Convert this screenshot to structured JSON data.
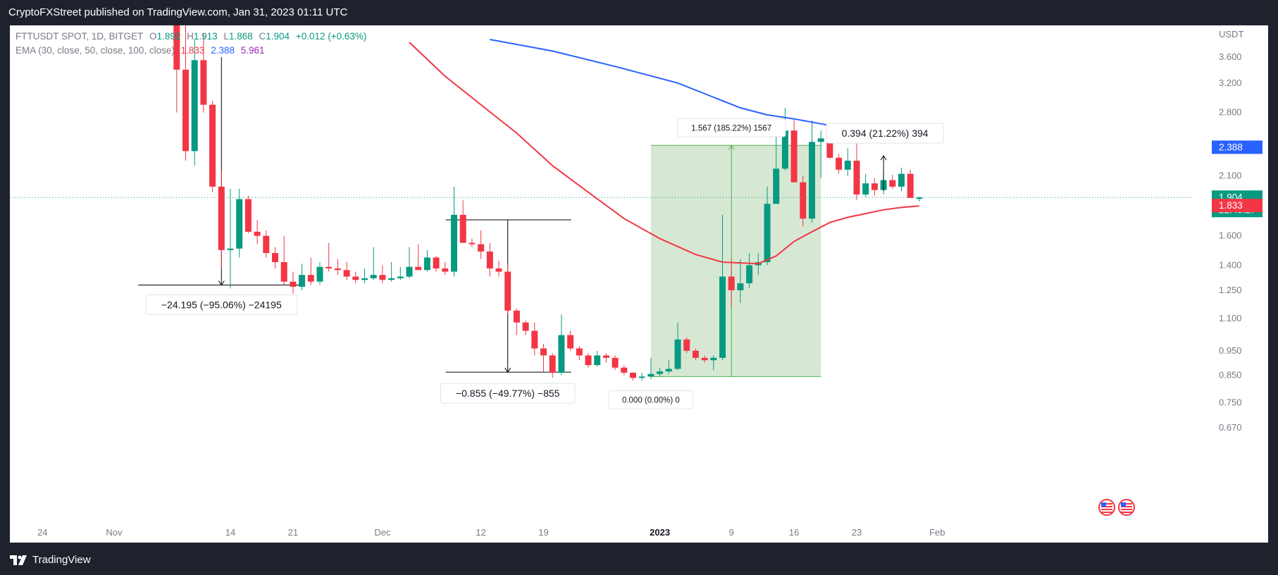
{
  "header": {
    "publisher_line": "CryptoFXStreet published on TradingView.com, Jan 31, 2023 01:11 UTC"
  },
  "footer": {
    "brand": "TradingView"
  },
  "legend": {
    "symbol_line": "FTTUSDT SPOT, 1D, BITGET",
    "o_label": "O",
    "o_value": "1.892",
    "h_label": "H",
    "h_value": "1.913",
    "l_label": "L",
    "l_value": "1.868",
    "c_label": "C",
    "c_value": "1.904",
    "change": "+0.012 (+0.63%)",
    "ema_label": "EMA (30, close, 50, close, 100, close)",
    "ema30": "1.833",
    "ema50": "2.388",
    "ema100": "5.961"
  },
  "colors": {
    "up": "#089981",
    "down": "#f23645",
    "ema30": "#f23645",
    "ema50": "#2962ff",
    "ema100": "#9c27b0",
    "axis_text": "#787b86",
    "zone_fill": "#d6e8d4",
    "zone_line": "#4caf50"
  },
  "chart_data": {
    "type": "candlestick",
    "symbol": "FTTUSDT SPOT",
    "interval": "1D",
    "exchange": "BITGET",
    "y_axis": {
      "unit": "USDT",
      "scale": "log",
      "ticks": [
        3.6,
        3.2,
        2.8,
        2.1,
        1.6,
        1.4,
        1.25,
        1.1,
        0.95,
        0.85,
        0.75,
        0.67
      ],
      "tick_labels": [
        "3.600",
        "3.200",
        "2.800",
        "2.100",
        "1.600",
        "1.400",
        "1.250",
        "1.100",
        "0.950",
        "0.850",
        "0.750",
        "0.670"
      ]
    },
    "x_axis": {
      "ticks": [
        {
          "date": "2022-10-24",
          "label": "24",
          "bold": false
        },
        {
          "date": "2022-11-01",
          "label": "Nov",
          "bold": false
        },
        {
          "date": "2022-11-14",
          "label": "14",
          "bold": false
        },
        {
          "date": "2022-11-21",
          "label": "21",
          "bold": false
        },
        {
          "date": "2022-12-01",
          "label": "Dec",
          "bold": false
        },
        {
          "date": "2022-12-12",
          "label": "12",
          "bold": false
        },
        {
          "date": "2022-12-19",
          "label": "19",
          "bold": false
        },
        {
          "date": "2023-01-01",
          "label": "2023",
          "bold": true
        },
        {
          "date": "2023-01-09",
          "label": "9",
          "bold": false
        },
        {
          "date": "2023-01-16",
          "label": "16",
          "bold": false
        },
        {
          "date": "2023-01-23",
          "label": "23",
          "bold": false
        },
        {
          "date": "2023-02-01",
          "label": "Feb",
          "bold": false
        }
      ]
    },
    "candles": [
      {
        "date": "2022-11-07",
        "o": 22.0,
        "h": 26.0,
        "l": 15.0,
        "c": 21.0
      },
      {
        "date": "2022-11-08",
        "o": 21.0,
        "h": 23.0,
        "l": 2.8,
        "c": 3.4
      },
      {
        "date": "2022-11-09",
        "o": 3.4,
        "h": 4.2,
        "l": 2.25,
        "c": 2.35
      },
      {
        "date": "2022-11-10",
        "o": 2.35,
        "h": 3.9,
        "l": 2.2,
        "c": 3.55
      },
      {
        "date": "2022-11-11",
        "o": 3.55,
        "h": 4.0,
        "l": 2.8,
        "c": 2.9
      },
      {
        "date": "2022-11-12",
        "o": 2.9,
        "h": 2.95,
        "l": 1.95,
        "c": 2.0
      },
      {
        "date": "2022-11-13",
        "o": 2.0,
        "h": 2.15,
        "l": 1.38,
        "c": 1.5
      },
      {
        "date": "2022-11-14",
        "o": 1.5,
        "h": 1.98,
        "l": 1.26,
        "c": 1.51
      },
      {
        "date": "2022-11-15",
        "o": 1.51,
        "h": 1.98,
        "l": 1.45,
        "c": 1.89
      },
      {
        "date": "2022-11-16",
        "o": 1.89,
        "h": 1.92,
        "l": 1.62,
        "c": 1.63
      },
      {
        "date": "2022-11-17",
        "o": 1.63,
        "h": 1.72,
        "l": 1.54,
        "c": 1.6
      },
      {
        "date": "2022-11-18",
        "o": 1.6,
        "h": 1.64,
        "l": 1.45,
        "c": 1.48
      },
      {
        "date": "2022-11-19",
        "o": 1.48,
        "h": 1.52,
        "l": 1.38,
        "c": 1.42
      },
      {
        "date": "2022-11-20",
        "o": 1.42,
        "h": 1.6,
        "l": 1.28,
        "c": 1.3
      },
      {
        "date": "2022-11-21",
        "o": 1.3,
        "h": 1.36,
        "l": 1.23,
        "c": 1.27
      },
      {
        "date": "2022-11-22",
        "o": 1.27,
        "h": 1.41,
        "l": 1.25,
        "c": 1.34
      },
      {
        "date": "2022-11-23",
        "o": 1.34,
        "h": 1.45,
        "l": 1.28,
        "c": 1.3
      },
      {
        "date": "2022-11-24",
        "o": 1.3,
        "h": 1.42,
        "l": 1.28,
        "c": 1.39
      },
      {
        "date": "2022-11-25",
        "o": 1.39,
        "h": 1.55,
        "l": 1.36,
        "c": 1.38
      },
      {
        "date": "2022-11-26",
        "o": 1.38,
        "h": 1.44,
        "l": 1.34,
        "c": 1.37
      },
      {
        "date": "2022-11-27",
        "o": 1.37,
        "h": 1.42,
        "l": 1.31,
        "c": 1.33
      },
      {
        "date": "2022-11-28",
        "o": 1.33,
        "h": 1.36,
        "l": 1.29,
        "c": 1.31
      },
      {
        "date": "2022-11-29",
        "o": 1.31,
        "h": 1.38,
        "l": 1.29,
        "c": 1.32
      },
      {
        "date": "2022-11-30",
        "o": 1.32,
        "h": 1.52,
        "l": 1.31,
        "c": 1.34
      },
      {
        "date": "2022-12-01",
        "o": 1.34,
        "h": 1.4,
        "l": 1.29,
        "c": 1.31
      },
      {
        "date": "2022-12-02",
        "o": 1.31,
        "h": 1.42,
        "l": 1.3,
        "c": 1.32
      },
      {
        "date": "2022-12-03",
        "o": 1.32,
        "h": 1.39,
        "l": 1.31,
        "c": 1.33
      },
      {
        "date": "2022-12-04",
        "o": 1.33,
        "h": 1.52,
        "l": 1.32,
        "c": 1.39
      },
      {
        "date": "2022-12-05",
        "o": 1.39,
        "h": 1.54,
        "l": 1.38,
        "c": 1.37
      },
      {
        "date": "2022-12-06",
        "o": 1.37,
        "h": 1.5,
        "l": 1.36,
        "c": 1.45
      },
      {
        "date": "2022-12-07",
        "o": 1.45,
        "h": 1.46,
        "l": 1.36,
        "c": 1.38
      },
      {
        "date": "2022-12-08",
        "o": 1.38,
        "h": 1.42,
        "l": 1.34,
        "c": 1.36
      },
      {
        "date": "2022-12-09",
        "o": 1.36,
        "h": 2.0,
        "l": 1.33,
        "c": 1.76
      },
      {
        "date": "2022-12-10",
        "o": 1.76,
        "h": 1.88,
        "l": 1.55,
        "c": 1.55
      },
      {
        "date": "2022-12-11",
        "o": 1.55,
        "h": 1.58,
        "l": 1.52,
        "c": 1.54
      },
      {
        "date": "2022-12-12",
        "o": 1.54,
        "h": 1.64,
        "l": 1.44,
        "c": 1.49
      },
      {
        "date": "2022-12-13",
        "o": 1.49,
        "h": 1.55,
        "l": 1.33,
        "c": 1.38
      },
      {
        "date": "2022-12-14",
        "o": 1.38,
        "h": 1.43,
        "l": 1.33,
        "c": 1.36
      },
      {
        "date": "2022-12-15",
        "o": 1.36,
        "h": 1.41,
        "l": 1.12,
        "c": 1.14
      },
      {
        "date": "2022-12-16",
        "o": 1.14,
        "h": 1.15,
        "l": 1.02,
        "c": 1.08
      },
      {
        "date": "2022-12-17",
        "o": 1.08,
        "h": 1.09,
        "l": 1.02,
        "c": 1.04
      },
      {
        "date": "2022-12-18",
        "o": 1.04,
        "h": 1.08,
        "l": 0.93,
        "c": 0.96
      },
      {
        "date": "2022-12-19",
        "o": 0.96,
        "h": 0.98,
        "l": 0.86,
        "c": 0.93
      },
      {
        "date": "2022-12-20",
        "o": 0.93,
        "h": 0.94,
        "l": 0.84,
        "c": 0.86
      },
      {
        "date": "2022-12-21",
        "o": 0.86,
        "h": 1.12,
        "l": 0.85,
        "c": 1.02
      },
      {
        "date": "2022-12-22",
        "o": 1.02,
        "h": 1.04,
        "l": 0.95,
        "c": 0.96
      },
      {
        "date": "2022-12-23",
        "o": 0.96,
        "h": 0.97,
        "l": 0.91,
        "c": 0.93
      },
      {
        "date": "2022-12-24",
        "o": 0.93,
        "h": 0.94,
        "l": 0.88,
        "c": 0.89
      },
      {
        "date": "2022-12-25",
        "o": 0.89,
        "h": 0.95,
        "l": 0.885,
        "c": 0.93
      },
      {
        "date": "2022-12-26",
        "o": 0.93,
        "h": 0.94,
        "l": 0.9,
        "c": 0.92
      },
      {
        "date": "2022-12-27",
        "o": 0.92,
        "h": 0.93,
        "l": 0.87,
        "c": 0.88
      },
      {
        "date": "2022-12-28",
        "o": 0.88,
        "h": 0.89,
        "l": 0.85,
        "c": 0.86
      },
      {
        "date": "2022-12-29",
        "o": 0.86,
        "h": 0.862,
        "l": 0.83,
        "c": 0.84
      },
      {
        "date": "2022-12-30",
        "o": 0.84,
        "h": 0.86,
        "l": 0.83,
        "c": 0.845
      },
      {
        "date": "2022-12-31",
        "o": 0.845,
        "h": 0.92,
        "l": 0.835,
        "c": 0.855
      },
      {
        "date": "2023-01-01",
        "o": 0.855,
        "h": 0.88,
        "l": 0.845,
        "c": 0.865
      },
      {
        "date": "2023-01-02",
        "o": 0.865,
        "h": 0.91,
        "l": 0.855,
        "c": 0.875
      },
      {
        "date": "2023-01-03",
        "o": 0.875,
        "h": 1.08,
        "l": 0.87,
        "c": 1.0
      },
      {
        "date": "2023-01-04",
        "o": 1.0,
        "h": 1.01,
        "l": 0.94,
        "c": 0.95
      },
      {
        "date": "2023-01-05",
        "o": 0.95,
        "h": 0.96,
        "l": 0.91,
        "c": 0.92
      },
      {
        "date": "2023-01-06",
        "o": 0.92,
        "h": 0.93,
        "l": 0.9,
        "c": 0.91
      },
      {
        "date": "2023-01-07",
        "o": 0.91,
        "h": 0.93,
        "l": 0.87,
        "c": 0.92
      },
      {
        "date": "2023-01-08",
        "o": 0.92,
        "h": 1.76,
        "l": 0.91,
        "c": 1.33
      },
      {
        "date": "2023-01-09",
        "o": 1.33,
        "h": 1.44,
        "l": 1.16,
        "c": 1.25
      },
      {
        "date": "2023-01-10",
        "o": 1.25,
        "h": 1.44,
        "l": 1.18,
        "c": 1.29
      },
      {
        "date": "2023-01-11",
        "o": 1.29,
        "h": 1.48,
        "l": 1.26,
        "c": 1.4
      },
      {
        "date": "2023-01-12",
        "o": 1.4,
        "h": 1.48,
        "l": 1.34,
        "c": 1.42
      },
      {
        "date": "2023-01-13",
        "o": 1.42,
        "h": 2.0,
        "l": 1.4,
        "c": 1.85
      },
      {
        "date": "2023-01-14",
        "o": 1.85,
        "h": 2.7,
        "l": 1.85,
        "c": 2.17
      },
      {
        "date": "2023-01-15",
        "o": 2.17,
        "h": 2.86,
        "l": 2.15,
        "c": 2.58
      },
      {
        "date": "2023-01-16",
        "o": 2.58,
        "h": 2.72,
        "l": 2.04,
        "c": 2.04
      },
      {
        "date": "2023-01-17",
        "o": 2.04,
        "h": 2.1,
        "l": 1.67,
        "c": 1.73
      },
      {
        "date": "2023-01-18",
        "o": 1.73,
        "h": 2.7,
        "l": 1.7,
        "c": 2.45
      },
      {
        "date": "2023-01-19",
        "o": 2.45,
        "h": 2.58,
        "l": 2.08,
        "c": 2.49
      },
      {
        "date": "2023-01-20",
        "o": 2.49,
        "h": 2.52,
        "l": 2.27,
        "c": 2.28
      },
      {
        "date": "2023-01-21",
        "o": 2.28,
        "h": 2.32,
        "l": 2.12,
        "c": 2.16
      },
      {
        "date": "2023-01-22",
        "o": 2.16,
        "h": 2.38,
        "l": 2.1,
        "c": 2.25
      },
      {
        "date": "2023-01-23",
        "o": 2.25,
        "h": 2.5,
        "l": 1.88,
        "c": 1.93
      },
      {
        "date": "2023-01-24",
        "o": 1.93,
        "h": 2.12,
        "l": 1.91,
        "c": 2.03
      },
      {
        "date": "2023-01-25",
        "o": 2.03,
        "h": 2.08,
        "l": 1.92,
        "c": 1.97
      },
      {
        "date": "2023-01-26",
        "o": 1.97,
        "h": 2.12,
        "l": 1.93,
        "c": 2.06
      },
      {
        "date": "2023-01-27",
        "o": 2.06,
        "h": 2.11,
        "l": 1.98,
        "c": 2.0
      },
      {
        "date": "2023-01-28",
        "o": 2.0,
        "h": 2.18,
        "l": 1.96,
        "c": 2.12
      },
      {
        "date": "2023-01-29",
        "o": 2.12,
        "h": 2.16,
        "l": 1.92,
        "c": 1.9
      },
      {
        "date": "2023-01-30",
        "o": 1.892,
        "h": 1.913,
        "l": 1.868,
        "c": 1.904
      }
    ],
    "ema_series": [
      {
        "name": "EMA 30",
        "color": "#f23645",
        "points": [
          [
            "2022-12-04",
            3.85
          ],
          [
            "2022-12-08",
            3.3
          ],
          [
            "2022-12-12",
            2.9
          ],
          [
            "2022-12-16",
            2.55
          ],
          [
            "2022-12-20",
            2.2
          ],
          [
            "2022-12-24",
            1.95
          ],
          [
            "2022-12-28",
            1.73
          ],
          [
            "2023-01-01",
            1.58
          ],
          [
            "2023-01-05",
            1.47
          ],
          [
            "2023-01-08",
            1.42
          ],
          [
            "2023-01-12",
            1.41
          ],
          [
            "2023-01-14",
            1.46
          ],
          [
            "2023-01-16",
            1.56
          ],
          [
            "2023-01-18",
            1.63
          ],
          [
            "2023-01-20",
            1.7
          ],
          [
            "2023-01-22",
            1.74
          ],
          [
            "2023-01-24",
            1.77
          ],
          [
            "2023-01-26",
            1.8
          ],
          [
            "2023-01-28",
            1.82
          ],
          [
            "2023-01-30",
            1.833
          ]
        ]
      },
      {
        "name": "EMA 50",
        "color": "#2962ff",
        "points": [
          [
            "2022-12-13",
            3.9
          ],
          [
            "2022-12-20",
            3.7
          ],
          [
            "2022-12-27",
            3.45
          ],
          [
            "2023-01-03",
            3.2
          ],
          [
            "2023-01-07",
            3.0
          ],
          [
            "2023-01-10",
            2.86
          ],
          [
            "2023-01-13",
            2.77
          ],
          [
            "2023-01-16",
            2.72
          ],
          [
            "2023-01-19",
            2.66
          ],
          [
            "2023-01-21",
            2.62
          ],
          [
            "2023-01-23",
            2.58
          ]
        ]
      }
    ],
    "current_price_line": 1.904,
    "price_labels": [
      {
        "value": "2.388",
        "color": "#2962ff"
      },
      {
        "value": "1.904",
        "sub": "22:48:27",
        "color": "#089981"
      },
      {
        "value": "1.833",
        "color": "#f23645"
      }
    ],
    "measurements": [
      {
        "label": "−24.195 (−95.06%) −24195",
        "from_date": "2022-11-13",
        "from_price": 3.6,
        "to_date": "2022-11-13",
        "to_price": 1.28
      },
      {
        "label": "−0.855 (−49.77%) −855",
        "from_date": "2022-12-15",
        "from_price": 1.72,
        "to_date": "2022-12-15",
        "to_price": 0.862
      },
      {
        "label": "0.394 (21.22%) 394",
        "from_date": "2023-01-26",
        "from_price": 1.96,
        "to_date": "2023-01-26",
        "to_price": 2.3
      }
    ],
    "long_position": {
      "start_date": "2022-12-31",
      "end_date": "2023-01-19",
      "entry": 0.845,
      "target": 2.412,
      "target_label": "1.567 (185.22%) 1567",
      "entry_label": "0.000 (0.00%) 0",
      "arrow_date": "2023-01-09"
    }
  }
}
